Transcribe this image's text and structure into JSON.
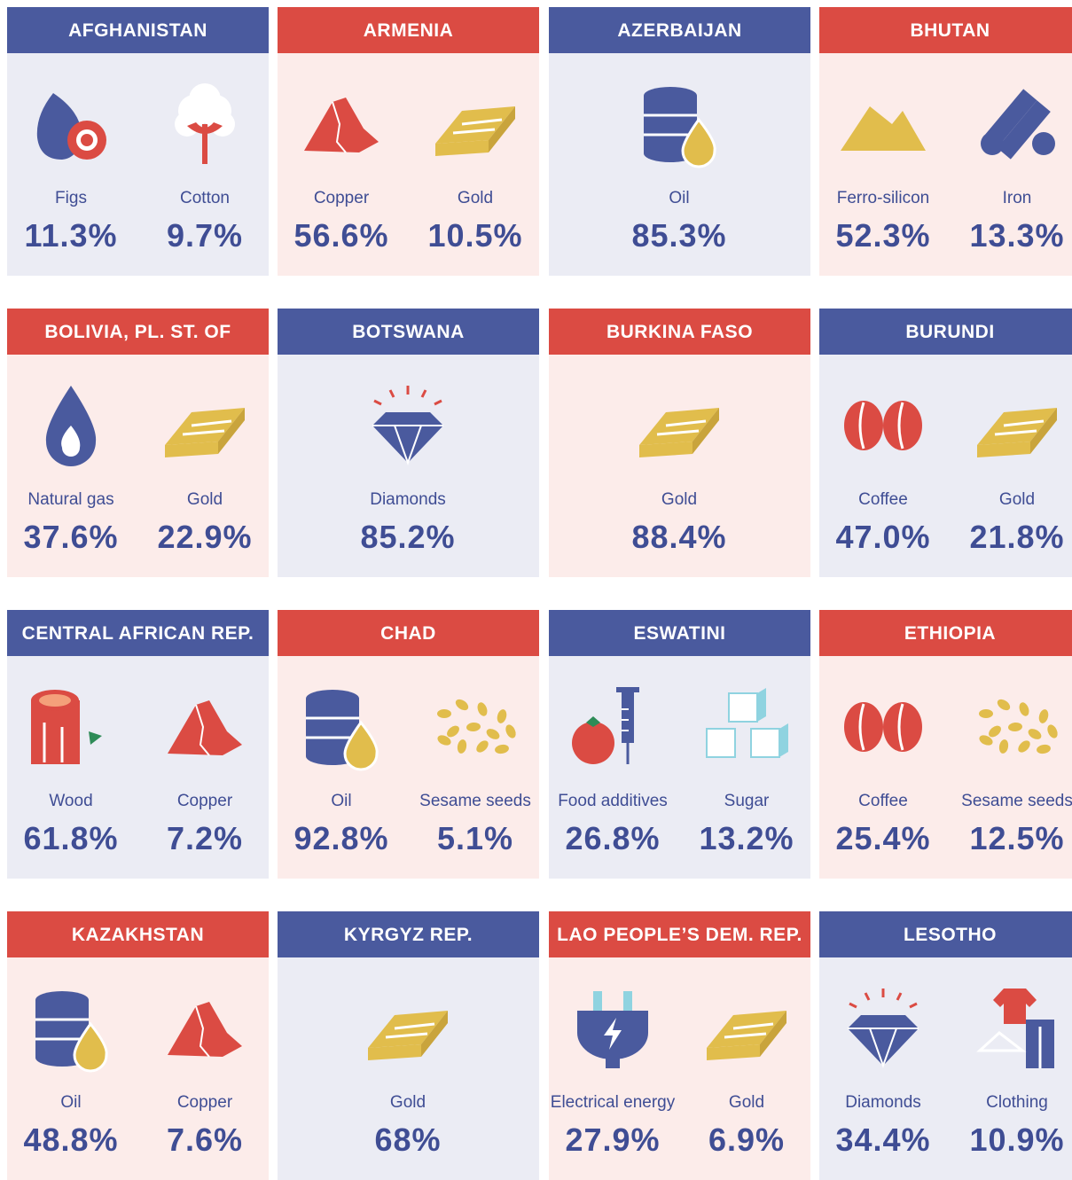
{
  "cards": [
    {
      "country": "AFGHANISTAN",
      "items": [
        {
          "label": "Figs",
          "share": "11.3%"
        },
        {
          "label": "Cotton",
          "share": "9.7%"
        }
      ]
    },
    {
      "country": "ARMENIA",
      "items": [
        {
          "label": "Copper",
          "share": "56.6%"
        },
        {
          "label": "Gold",
          "share": "10.5%"
        }
      ]
    },
    {
      "country": "AZERBAIJAN",
      "items": [
        {
          "label": "Oil",
          "share": "85.3%"
        }
      ]
    },
    {
      "country": "BHUTAN",
      "items": [
        {
          "label": "Ferro-silicon",
          "share": "52.3%"
        },
        {
          "label": "Iron",
          "share": "13.3%"
        }
      ]
    },
    {
      "country": "BOLIVIA, PL. ST. OF",
      "items": [
        {
          "label": "Natural gas",
          "share": "37.6%"
        },
        {
          "label": "Gold",
          "share": "22.9%"
        }
      ]
    },
    {
      "country": "BOTSWANA",
      "items": [
        {
          "label": "Diamonds",
          "share": "85.2%"
        }
      ]
    },
    {
      "country": "BURKINA FASO",
      "items": [
        {
          "label": "Gold",
          "share": "88.4%"
        }
      ]
    },
    {
      "country": "BURUNDI",
      "items": [
        {
          "label": "Coffee",
          "share": "47.0%"
        },
        {
          "label": "Gold",
          "share": "21.8%"
        }
      ]
    },
    {
      "country": "CENTRAL AFRICAN REP.",
      "items": [
        {
          "label": "Wood",
          "share": "61.8%"
        },
        {
          "label": "Copper",
          "share": "7.2%"
        }
      ]
    },
    {
      "country": "CHAD",
      "items": [
        {
          "label": "Oil",
          "share": "92.8%"
        },
        {
          "label": "Sesame seeds",
          "share": "5.1%"
        }
      ]
    },
    {
      "country": "ESWATINI",
      "items": [
        {
          "label": "Food additives",
          "share": "26.8%"
        },
        {
          "label": "Sugar",
          "share": "13.2%"
        }
      ]
    },
    {
      "country": "ETHIOPIA",
      "items": [
        {
          "label": "Coffee",
          "share": "25.4%"
        },
        {
          "label": "Sesame seeds",
          "share": "12.5%"
        }
      ]
    },
    {
      "country": "KAZAKHSTAN",
      "items": [
        {
          "label": "Oil",
          "share": "48.8%"
        },
        {
          "label": "Copper",
          "share": "7.6%"
        }
      ]
    },
    {
      "country": "KYRGYZ REP.",
      "items": [
        {
          "label": "Gold",
          "share": "68%"
        }
      ]
    },
    {
      "country": "LAO PEOPLE’S DEM. REP.",
      "items": [
        {
          "label": "Electrical energy",
          "share": "27.9%"
        },
        {
          "label": "Gold",
          "share": "6.9%"
        }
      ]
    },
    {
      "country": "LESOTHO",
      "items": [
        {
          "label": "Diamonds",
          "share": "34.4%"
        },
        {
          "label": "Clothing",
          "share": "10.9%"
        }
      ]
    }
  ]
}
